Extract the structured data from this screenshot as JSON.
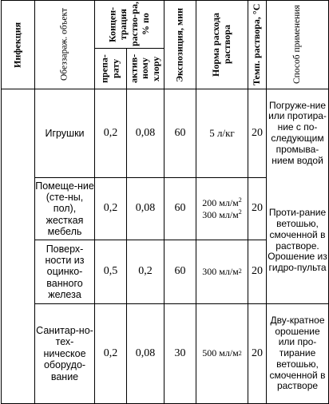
{
  "header": {
    "infection": "Инфекция",
    "object": "Обеззараж. объект",
    "concentration": "Концен-трация раство-ра, % по",
    "preparation": "препа-рату",
    "active_chlorine": "актив-ному хлору",
    "exposure": "Экспозиция, мин",
    "consumption_norm": "Норма расхода раствора",
    "temperature": "Темп. раствора, °С",
    "method": "Способ применения"
  },
  "rows": [
    {
      "object": "Игрушки",
      "preparation": "0,2",
      "chlorine": "0,08",
      "exposure": "60",
      "norm": "5 л/кг",
      "temp": "20",
      "method": "Погруже-ние или протира-ние с по-следующим промыва-нием водой"
    },
    {
      "object": "Помеще-ние (сте-ны, пол), жесткая мебель",
      "preparation": "0,2",
      "chlorine": "0,08",
      "exposure": "60",
      "norm_line1": "200 мл/м",
      "norm_line2": "300 мл/м",
      "norm_sup": "2",
      "temp": "20",
      "method": "Проти-рание ветошью, смоченной в растворе. Орошение из гидро-пульта"
    },
    {
      "object": "Поверх-ности из оцинко-ванного железа",
      "preparation": "0,5",
      "chlorine": "0,2",
      "exposure": "60",
      "norm": "300 мл/м",
      "norm_sup": "2",
      "temp": "20"
    },
    {
      "object": "Санитар-но-тех-ническое оборудо-вание",
      "preparation": "0,2",
      "chlorine": "0,08",
      "exposure": "30",
      "norm": "500 мл/м",
      "norm_sup": "2",
      "temp": "20",
      "method": "Дву-кратное орошение или про-тирание ветошью, смоченной в растворе"
    }
  ]
}
